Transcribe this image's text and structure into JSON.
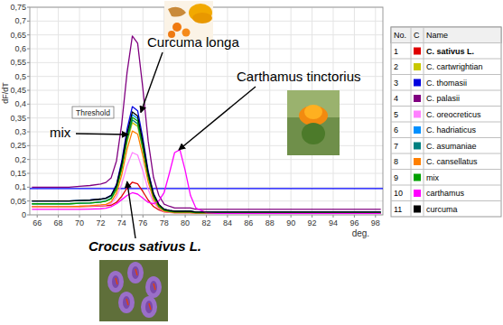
{
  "chart_data": {
    "type": "line",
    "x_label": "deg.",
    "y_label": "dF/dT",
    "x": [
      65.5,
      66,
      67,
      68,
      69,
      70,
      71,
      72,
      72.5,
      73,
      73.5,
      74,
      74.5,
      75,
      75.5,
      76,
      76.5,
      77,
      77.5,
      78,
      78.5,
      79,
      79.5,
      80,
      80.5,
      81,
      82,
      83,
      84,
      86,
      88,
      90,
      92,
      94,
      96,
      98,
      98.5
    ],
    "xlim": [
      65.3,
      98.7
    ],
    "xticks": [
      66,
      68,
      70,
      72,
      74,
      76,
      78,
      80,
      82,
      84,
      86,
      88,
      90,
      92,
      94,
      96,
      98
    ],
    "ylim": [
      0,
      0.75
    ],
    "yticks": [
      0,
      {
        "value": 0.05,
        "label": "0,05"
      },
      {
        "value": 0.1,
        "label": "0,1"
      },
      {
        "value": 0.15,
        "label": "0,15"
      },
      {
        "value": 0.2,
        "label": "0,2"
      },
      {
        "value": 0.25,
        "label": "0,25"
      },
      {
        "value": 0.3,
        "label": "0,3"
      },
      {
        "value": 0.35,
        "label": "0,35"
      },
      {
        "value": 0.4,
        "label": "0,4"
      },
      {
        "value": 0.45,
        "label": "0,45"
      },
      {
        "value": 0.5,
        "label": "0,5"
      },
      {
        "value": 0.55,
        "label": "0,55"
      },
      {
        "value": 0.6,
        "label": "0,6"
      },
      {
        "value": 0.65,
        "label": "0,65"
      },
      {
        "value": 0.7,
        "label": "0,7"
      },
      {
        "value": 0.75,
        "label": "0,75"
      }
    ],
    "grid": true,
    "legend": "right",
    "legend_columns": [
      "No.",
      "C",
      "Name"
    ],
    "series": [
      {
        "number": 1,
        "name": "C. sativus L.",
        "color": "#e00000",
        "values": [
          0.03,
          0.03,
          0.03,
          0.03,
          0.03,
          0.03,
          0.031,
          0.032,
          0.033,
          0.035,
          0.045,
          0.067,
          0.097,
          0.118,
          0.112,
          0.084,
          0.053,
          0.03,
          0.018,
          0.011,
          0.009,
          0.008,
          0.008,
          0.008,
          0.008,
          0.006,
          0.006,
          0.006,
          0.006,
          0.006,
          0.006,
          0.006,
          0.006,
          0.006,
          0.006,
          0.006,
          0.006
        ]
      },
      {
        "number": 2,
        "name": "C. cartwrightian",
        "color": "#c8c800",
        "values": [
          0.04,
          0.04,
          0.04,
          0.04,
          0.04,
          0.042,
          0.043,
          0.046,
          0.049,
          0.058,
          0.091,
          0.163,
          0.262,
          0.333,
          0.32,
          0.233,
          0.133,
          0.065,
          0.031,
          0.016,
          0.013,
          0.01,
          0.01,
          0.01,
          0.01,
          0.008,
          0.008,
          0.008,
          0.008,
          0.008,
          0.008,
          0.008,
          0.008,
          0.008,
          0.008,
          0.008,
          0.008
        ]
      },
      {
        "number": 3,
        "name": "C. thomasii",
        "color": "#0000e0",
        "values": [
          0.05,
          0.05,
          0.05,
          0.05,
          0.05,
          0.052,
          0.054,
          0.057,
          0.061,
          0.071,
          0.11,
          0.194,
          0.309,
          0.391,
          0.376,
          0.275,
          0.158,
          0.077,
          0.038,
          0.02,
          0.016,
          0.013,
          0.013,
          0.013,
          0.013,
          0.01,
          0.01,
          0.01,
          0.01,
          0.01,
          0.01,
          0.01,
          0.01,
          0.01,
          0.01,
          0.01,
          0.01
        ]
      },
      {
        "number": 4,
        "name": "C. palasii",
        "color": "#800080",
        "values": [
          0.1,
          0.1,
          0.1,
          0.1,
          0.1,
          0.103,
          0.106,
          0.111,
          0.117,
          0.134,
          0.195,
          0.33,
          0.514,
          0.646,
          0.62,
          0.455,
          0.266,
          0.136,
          0.071,
          0.039,
          0.031,
          0.025,
          0.025,
          0.025,
          0.025,
          0.02,
          0.02,
          0.02,
          0.02,
          0.02,
          0.02,
          0.02,
          0.02,
          0.02,
          0.02,
          0.02,
          0.02
        ]
      },
      {
        "number": 5,
        "name": "C. oreocreticus",
        "color": "#ff80ff",
        "values": [
          0.03,
          0.03,
          0.03,
          0.03,
          0.03,
          0.031,
          0.032,
          0.034,
          0.036,
          0.042,
          0.064,
          0.112,
          0.178,
          0.225,
          0.216,
          0.158,
          0.091,
          0.045,
          0.023,
          0.012,
          0.009,
          0.008,
          0.008,
          0.008,
          0.008,
          0.006,
          0.006,
          0.006,
          0.006,
          0.006,
          0.006,
          0.006,
          0.006,
          0.006,
          0.006,
          0.006,
          0.006
        ]
      },
      {
        "number": 6,
        "name": "C. hadriaticus",
        "color": "#0090ff",
        "values": [
          0.04,
          0.04,
          0.04,
          0.04,
          0.04,
          0.042,
          0.043,
          0.047,
          0.05,
          0.06,
          0.096,
          0.175,
          0.284,
          0.362,
          0.348,
          0.253,
          0.144,
          0.069,
          0.033,
          0.017,
          0.013,
          0.01,
          0.01,
          0.01,
          0.01,
          0.008,
          0.008,
          0.008,
          0.008,
          0.008,
          0.008,
          0.008,
          0.008,
          0.008,
          0.008,
          0.008,
          0.008
        ]
      },
      {
        "number": 7,
        "name": "C. asumaniae",
        "color": "#008080",
        "values": [
          0.05,
          0.05,
          0.05,
          0.05,
          0.05,
          0.052,
          0.053,
          0.056,
          0.059,
          0.068,
          0.101,
          0.173,
          0.272,
          0.343,
          0.329,
          0.241,
          0.14,
          0.071,
          0.036,
          0.02,
          0.016,
          0.013,
          0.013,
          0.013,
          0.013,
          0.01,
          0.01,
          0.01,
          0.01,
          0.01,
          0.01,
          0.01,
          0.01,
          0.01,
          0.01,
          0.01,
          0.01
        ]
      },
      {
        "number": 8,
        "name": "C. cansellatus",
        "color": "#ff8000",
        "values": [
          0.03,
          0.03,
          0.03,
          0.03,
          0.03,
          0.031,
          0.033,
          0.036,
          0.038,
          0.047,
          0.078,
          0.145,
          0.237,
          0.303,
          0.292,
          0.212,
          0.119,
          0.056,
          0.026,
          0.013,
          0.01,
          0.008,
          0.008,
          0.008,
          0.008,
          0.006,
          0.006,
          0.006,
          0.006,
          0.006,
          0.006,
          0.006,
          0.006,
          0.006,
          0.006,
          0.006,
          0.006
        ]
      },
      {
        "number": 9,
        "name": "mix",
        "color": "#00a000",
        "values": [
          0.04,
          0.04,
          0.04,
          0.04,
          0.04,
          0.042,
          0.043,
          0.046,
          0.05,
          0.059,
          0.094,
          0.171,
          0.277,
          0.352,
          0.339,
          0.246,
          0.14,
          0.067,
          0.032,
          0.017,
          0.013,
          0.01,
          0.01,
          0.01,
          0.01,
          0.008,
          0.008,
          0.008,
          0.008,
          0.008,
          0.008,
          0.008,
          0.008,
          0.008,
          0.008,
          0.008,
          0.008
        ]
      },
      {
        "number": 10,
        "name": "carthamus",
        "color": "#ff00ff",
        "values": [
          0.02,
          0.02,
          0.02,
          0.02,
          0.02,
          0.02,
          0.021,
          0.022,
          0.024,
          0.03,
          0.04,
          0.055,
          0.07,
          0.08,
          0.075,
          0.06,
          0.045,
          0.04,
          0.05,
          0.08,
          0.15,
          0.225,
          0.235,
          0.16,
          0.07,
          0.025,
          0.008,
          0.005,
          0.005,
          0.005,
          0.005,
          0.005,
          0.005,
          0.005,
          0.005,
          0.005,
          0.005
        ]
      },
      {
        "number": 11,
        "name": "curcuma",
        "color": "#000000",
        "values": [
          0.05,
          0.05,
          0.05,
          0.05,
          0.05,
          0.052,
          0.053,
          0.057,
          0.06,
          0.07,
          0.106,
          0.185,
          0.294,
          0.372,
          0.357,
          0.261,
          0.151,
          0.075,
          0.038,
          0.02,
          0.016,
          0.013,
          0.013,
          0.013,
          0.013,
          0.01,
          0.01,
          0.01,
          0.01,
          0.01,
          0.01,
          0.01,
          0.01,
          0.01,
          0.01,
          0.01,
          0.01
        ]
      }
    ],
    "threshold": {
      "value": 0.095,
      "label": "Threshold",
      "color": "#0000ff"
    },
    "annotations": [
      {
        "text": "Curcuma longa",
        "x": 75.8,
        "y": 0.37
      },
      {
        "text": "mix",
        "x": 74.6,
        "y": 0.29
      },
      {
        "text": "Carthamus tinctorius",
        "x": 79.4,
        "y": 0.235
      },
      {
        "text": "Crocus sativus L.",
        "x": 74.5,
        "y": 0.12
      }
    ]
  }
}
